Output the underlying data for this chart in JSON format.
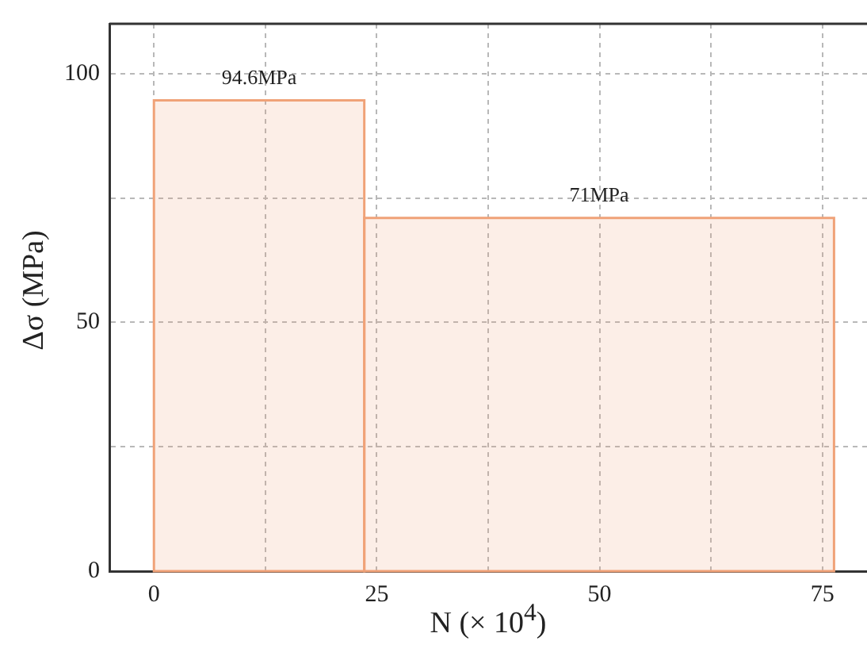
{
  "chart_data": {
    "type": "histogram",
    "xlabel": "N (× 10$^{4}$)",
    "ylabel": "Δσ (MPa)",
    "bins": [
      0,
      23.6,
      76.3
    ],
    "values": [
      94.6,
      71
    ],
    "value_labels": [
      "94.6MPa",
      "71MPa"
    ],
    "color": "#f0a278",
    "xlim": [
      -5,
      80
    ],
    "xticks": [
      0,
      {
        "value": 12.5,
        "label": null
      },
      25,
      {
        "value": 37.5,
        "label": null
      },
      50,
      {
        "value": 62.5,
        "label": null
      },
      75
    ],
    "ylim": [
      0,
      110
    ],
    "yticks": [
      0,
      {
        "value": 25,
        "label": null
      },
      50,
      {
        "value": 75,
        "label": null
      },
      100
    ],
    "grid": true,
    "legend": false
  }
}
